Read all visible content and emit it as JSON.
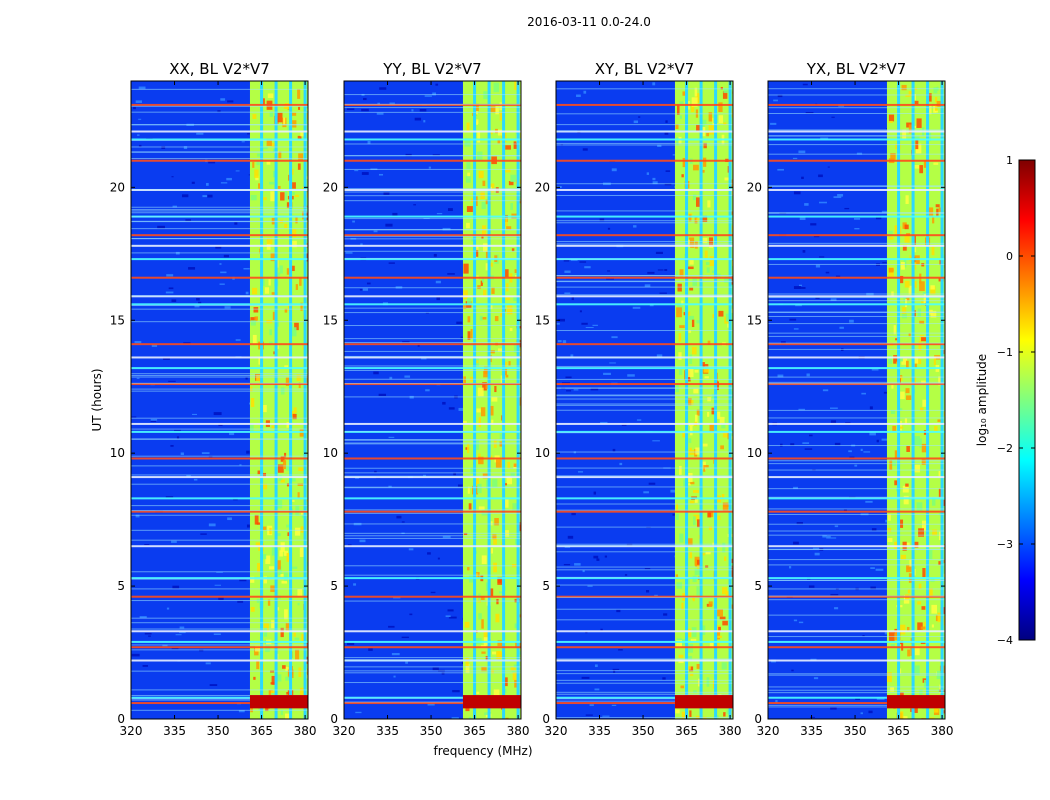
{
  "chart_data": {
    "type": "heatmap",
    "suptitle": "2016-03-11 0.0-24.0",
    "xlabel": "frequency (MHz)",
    "ylabel": "UT (hours)",
    "xlim": [
      320,
      381
    ],
    "ylim": [
      0,
      24
    ],
    "xticks": [
      320,
      335,
      350,
      365,
      380
    ],
    "yticks": [
      0,
      5,
      10,
      15,
      20
    ],
    "panels": [
      {
        "title": "XX, BL V2*V7"
      },
      {
        "title": "YY, BL V2*V7"
      },
      {
        "title": "XY, BL V2*V7"
      },
      {
        "title": "YX, BL V2*V7"
      }
    ],
    "colorbar": {
      "label": "log₁₀ amplitude",
      "colormap": "jet",
      "range": [
        -4,
        1
      ],
      "ticks": [
        "1",
        "0",
        "−1",
        "−2",
        "−3",
        "−4"
      ],
      "tick_values": [
        1,
        0,
        -1,
        -2,
        -3,
        -4
      ]
    },
    "features": {
      "strong_band_mhz": [
        361,
        381
      ],
      "channel_gaps_mhz": [
        365,
        370,
        375,
        380
      ],
      "rfi_rows_hours": [
        0.6,
        0.8,
        2.2,
        2.7,
        2.9,
        3.3,
        4.6,
        5.3,
        6.5,
        7.8,
        8.3,
        9.1,
        9.8,
        10.8,
        11.1,
        12.6,
        13.2,
        13.6,
        14.1,
        15.6,
        15.9,
        16.6,
        17.3,
        17.8,
        18.2,
        18.9,
        19.9,
        21.0,
        21.8,
        22.1,
        23.1
      ]
    }
  }
}
